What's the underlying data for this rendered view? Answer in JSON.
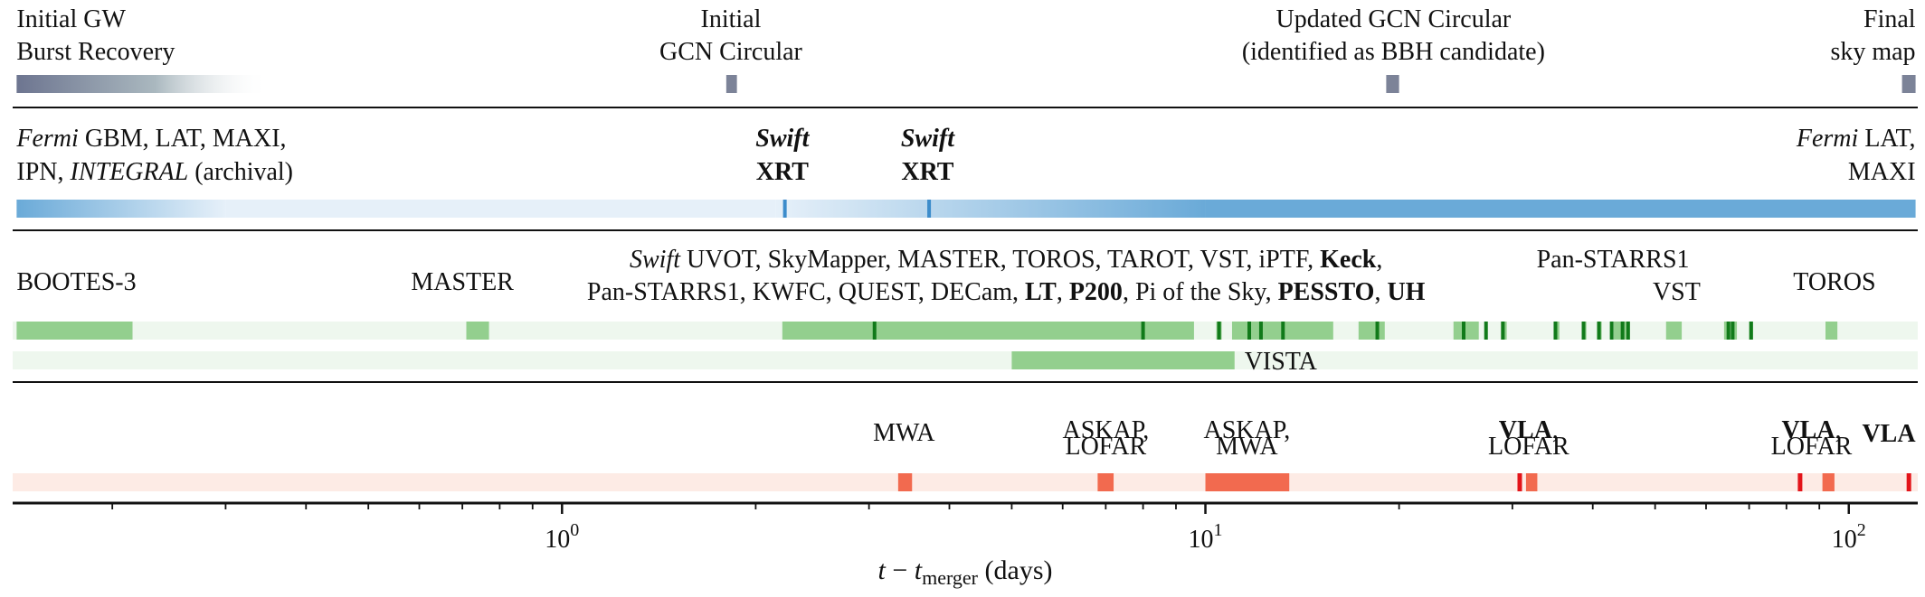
{
  "chart_data": {
    "type": "timeline",
    "xlabel": "t − t_merger (days)",
    "xscale": "log",
    "xlim": [
      0.14,
      128
    ],
    "x_tick_labels": [
      {
        "x": 1,
        "base": "10",
        "exp": "0"
      },
      {
        "x": 10,
        "base": "10",
        "exp": "1"
      },
      {
        "x": 100,
        "base": "10",
        "exp": "2"
      }
    ],
    "colors": {
      "ligo": "#7c8398",
      "ligo_fade": "#e6ecf0",
      "gamma": "#6aaad8",
      "gamma_light": "#e6f0f9",
      "gamma_mark": "#3c8ccb",
      "optical_bg": "#eef7ee",
      "optical_bar": "#93cf8e",
      "optical_mark": "#117a1a",
      "radio_bg": "#fdebe5",
      "radio_bar": "#f26a4f",
      "radio_mark": "#e3141a"
    },
    "rows": [
      {
        "name": "gw",
        "labels": [
          {
            "lines": [
              [
                {
                  "t": "Initial GW"
                }
              ],
              [
                {
                  "t": "Burst Recovery"
                }
              ]
            ],
            "x": 0.142,
            "anchor": "start"
          },
          {
            "lines": [
              [
                {
                  "t": "Initial"
                }
              ],
              [
                {
                  "t": "GCN Circular"
                }
              ]
            ],
            "x": 1.83,
            "anchor": "middle"
          },
          {
            "lines": [
              [
                {
                  "t": "Updated GCN Circular"
                }
              ],
              [
                {
                  "t": "(identified as BBH candidate)"
                }
              ]
            ],
            "x": 19.6,
            "anchor": "middle"
          },
          {
            "lines": [
              [
                {
                  "t": "Final"
                }
              ],
              [
                {
                  "t": "sky map"
                }
              ]
            ],
            "x": 127,
            "anchor": "end"
          }
        ],
        "segments": [
          {
            "start": 0.142,
            "end": 0.35,
            "style": "fade"
          },
          {
            "start": 1.8,
            "end": 1.87,
            "style": "block"
          },
          {
            "start": 19.1,
            "end": 20.0,
            "style": "block"
          },
          {
            "start": 121,
            "end": 127,
            "style": "block"
          }
        ]
      },
      {
        "name": "gamma_xray",
        "labels": [
          {
            "lines": [
              [
                {
                  "t": "Fermi",
                  "i": true
                },
                {
                  "t": " GBM, LAT, MAXI,"
                }
              ],
              [
                {
                  "t": "IPN, "
                },
                {
                  "t": "INTEGRAL",
                  "i": true
                },
                {
                  "t": " (archival)"
                }
              ]
            ],
            "x": 0.142,
            "anchor": "start"
          },
          {
            "lines": [
              [
                {
                  "t": "Swift",
                  "i": true,
                  "b": true
                }
              ],
              [
                {
                  "t": "XRT",
                  "b": true
                }
              ]
            ],
            "x": 2.2,
            "anchor": "middle"
          },
          {
            "lines": [
              [
                {
                  "t": "Swift",
                  "i": true,
                  "b": true
                }
              ],
              [
                {
                  "t": "XRT",
                  "b": true
                }
              ]
            ],
            "x": 3.7,
            "anchor": "middle"
          },
          {
            "lines": [
              [
                {
                  "t": "Fermi",
                  "i": true
                },
                {
                  "t": " LAT,"
                }
              ],
              [
                {
                  "t": "MAXI"
                }
              ]
            ],
            "x": 127,
            "anchor": "end"
          }
        ],
        "segments": [
          {
            "start": 0.142,
            "end": 0.3,
            "style": "fade-in"
          },
          {
            "start": 0.3,
            "end": 2.15,
            "style": "light"
          },
          {
            "start": 2.15,
            "end": 10,
            "style": "ramp"
          },
          {
            "start": 10,
            "end": 127,
            "style": "solid"
          }
        ],
        "marks": [
          2.22,
          3.72
        ]
      },
      {
        "name": "optical_ir",
        "labels": [
          {
            "lines": [
              [
                {
                  "t": "BOOTES-3"
                }
              ]
            ],
            "x": 0.142,
            "anchor": "start"
          },
          {
            "lines": [
              [
                {
                  "t": "MASTER"
                }
              ]
            ],
            "x": 0.7,
            "anchor": "middle"
          },
          {
            "lines": [
              [
                {
                  "t": "Swift",
                  "i": true
                },
                {
                  "t": " UVOT, SkyMapper, MASTER, TOROS, TAROT, VST, iPTF, "
                },
                {
                  "t": "Keck",
                  "b": true
                },
                {
                  "t": ","
                }
              ],
              [
                {
                  "t": "Pan-STARRS1, KWFC, QUEST, DECam, "
                },
                {
                  "t": "LT",
                  "b": true
                },
                {
                  "t": ", "
                },
                {
                  "t": "P200",
                  "b": true
                },
                {
                  "t": ", Pi of the Sky, "
                },
                {
                  "t": "PESSTO",
                  "b": true
                },
                {
                  "t": ", "
                },
                {
                  "t": "UH",
                  "b": true
                }
              ]
            ],
            "x": 4.9,
            "anchor": "middle"
          },
          {
            "lines": [
              [
                {
                  "t": "Pan-STARRS1"
                }
              ]
            ],
            "x": 43,
            "anchor": "middle"
          },
          {
            "lines": [
              [
                {
                  "t": "VST"
                }
              ]
            ],
            "x": 54,
            "anchor": "middle"
          },
          {
            "lines": [
              [
                {
                  "t": "TOROS"
                }
              ]
            ],
            "x": 95,
            "anchor": "middle"
          }
        ],
        "segments": [
          {
            "start": 0.142,
            "end": 0.215
          },
          {
            "start": 0.71,
            "end": 0.77
          },
          {
            "start": 2.2,
            "end": 9.6
          },
          {
            "start": 10.4,
            "end": 10.6
          },
          {
            "start": 11.0,
            "end": 15.8
          },
          {
            "start": 17.3,
            "end": 19.0
          },
          {
            "start": 24.3,
            "end": 26.6
          },
          {
            "start": 28.8,
            "end": 29.4
          },
          {
            "start": 34.9,
            "end": 35.5
          },
          {
            "start": 38.5,
            "end": 39.1
          },
          {
            "start": 40.6,
            "end": 41.3
          },
          {
            "start": 43.1,
            "end": 45.5
          },
          {
            "start": 52.0,
            "end": 55.0
          },
          {
            "start": 64.0,
            "end": 67.0
          },
          {
            "start": 70.0,
            "end": 71.0
          },
          {
            "start": 92.0,
            "end": 96.0
          }
        ],
        "marks": [
          3.06,
          8.0,
          10.5,
          11.7,
          12.2,
          13.2,
          18.5,
          25.2,
          27.3,
          29.0,
          35.0,
          38.7,
          40.9,
          42.8,
          44.5,
          45.4,
          65.0,
          66.0,
          70.5
        ]
      },
      {
        "name": "vista",
        "labels": [
          {
            "lines": [
              [
                {
                  "t": "VISTA"
                }
              ]
            ],
            "x": 11.5,
            "anchor": "start"
          }
        ],
        "segments": [
          {
            "start": 5.0,
            "end": 11.1
          }
        ]
      },
      {
        "name": "radio",
        "labels": [
          {
            "lines": [
              [
                {
                  "t": "MWA"
                }
              ]
            ],
            "x": 3.4,
            "anchor": "middle"
          },
          {
            "lines": [
              [
                {
                  "t": "ASKAP,"
                }
              ],
              [
                {
                  "t": "LOFAR"
                }
              ]
            ],
            "x": 7.0,
            "anchor": "middle"
          },
          {
            "lines": [
              [
                {
                  "t": "ASKAP,"
                }
              ],
              [
                {
                  "t": "MWA"
                }
              ]
            ],
            "x": 11.6,
            "anchor": "middle"
          },
          {
            "lines": [
              [
                {
                  "t": "VLA",
                  "b": true
                },
                {
                  "t": ","
                }
              ],
              [
                {
                  "t": "LOFAR"
                }
              ]
            ],
            "x": 31.8,
            "anchor": "middle"
          },
          {
            "lines": [
              [
                {
                  "t": "VLA",
                  "b": true
                },
                {
                  "t": ","
                }
              ],
              [
                {
                  "t": "LOFAR"
                }
              ]
            ],
            "x": 87.5,
            "anchor": "middle"
          },
          {
            "lines": [
              [
                {
                  "t": "VLA",
                  "b": true
                }
              ]
            ],
            "x": 127,
            "anchor": "end"
          }
        ],
        "segments": [
          {
            "start": 3.33,
            "end": 3.5
          },
          {
            "start": 6.8,
            "end": 7.2
          },
          {
            "start": 10.0,
            "end": 13.5
          },
          {
            "start": 31.5,
            "end": 32.8
          },
          {
            "start": 91.0,
            "end": 95.0
          }
        ],
        "marks": [
          30.8,
          84.0,
          124.0
        ]
      }
    ]
  }
}
